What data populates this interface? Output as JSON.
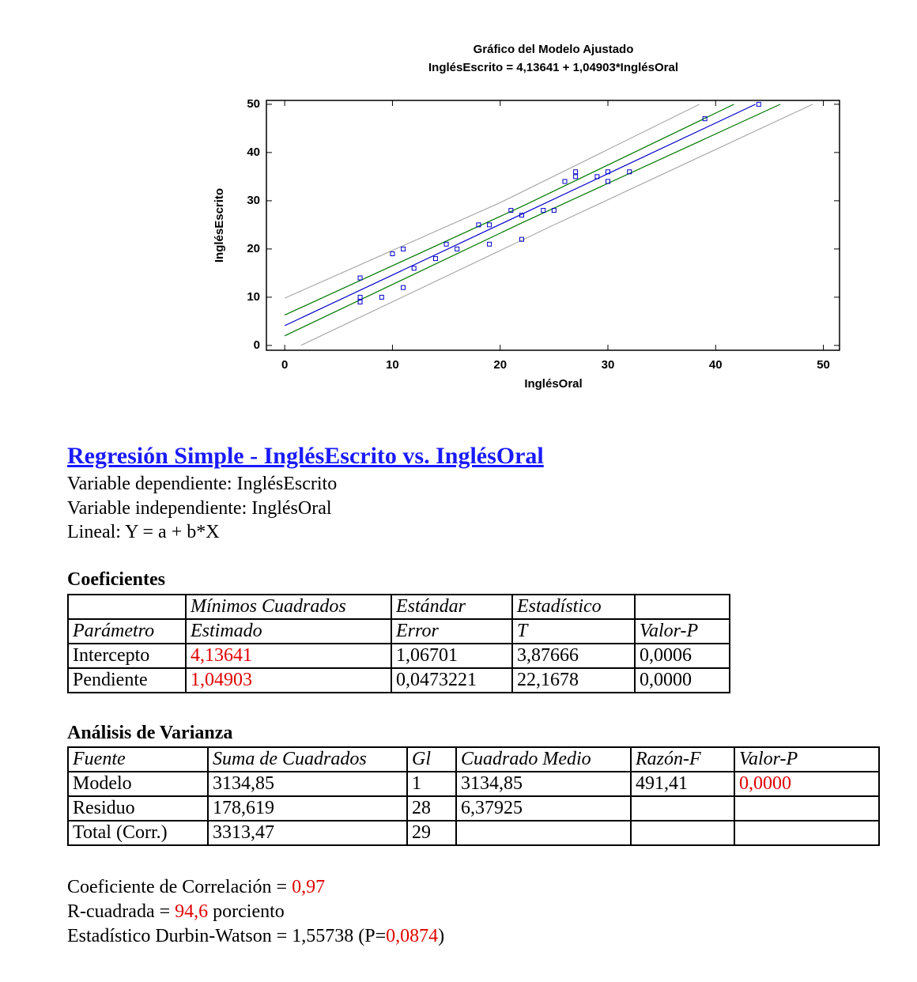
{
  "chart_data": {
    "type": "scatter",
    "title": "Gráfico del Modelo Ajustado",
    "subtitle": "InglésEscrito = 4,13641 + 1,04903*InglésOral",
    "x_label": "InglésOral",
    "y_label": "InglésEscrito",
    "xlim": [
      -1.7,
      51.5
    ],
    "ylim": [
      -1,
      50.8
    ],
    "xticks": [
      0,
      10,
      20,
      30,
      40,
      50
    ],
    "yticks": [
      0,
      10,
      20,
      30,
      40,
      50
    ],
    "series": [
      {
        "type": "scatter",
        "color": "#0000cc",
        "x": [
          7,
          7,
          7,
          9,
          10,
          11,
          11,
          12,
          14,
          15,
          16,
          18,
          19,
          19,
          21,
          22,
          22,
          24,
          25,
          26,
          27,
          27,
          29,
          30,
          30,
          32,
          39,
          44
        ],
        "values": [
          14,
          10,
          9,
          10,
          19,
          20,
          12,
          16,
          18,
          21,
          20,
          25,
          25,
          21,
          28,
          27,
          22,
          28,
          28,
          34,
          36,
          35,
          35,
          36,
          34,
          36,
          47,
          50
        ]
      },
      {
        "type": "line",
        "color": "#0000cc",
        "x": [
          0,
          43.7
        ],
        "values": [
          4.1,
          50
        ]
      },
      {
        "type": "line",
        "color": "#007700",
        "x": [
          0,
          22,
          41.7
        ],
        "values": [
          6.3,
          28.8,
          50
        ]
      },
      {
        "type": "line",
        "color": "#007700",
        "x": [
          0,
          22,
          46
        ],
        "values": [
          2,
          25.4,
          50
        ]
      },
      {
        "type": "line",
        "color": "#aaaaaa",
        "x": [
          0,
          20,
          38.5
        ],
        "values": [
          9.8,
          29.6,
          50
        ]
      },
      {
        "type": "line",
        "color": "#aaaaaa",
        "x": [
          1.5,
          25,
          49
        ],
        "values": [
          0,
          25,
          50
        ]
      }
    ]
  },
  "report": {
    "title": "Regresión Simple - InglésEscrito vs. InglésOral",
    "lines": [
      "Variable dependiente: InglésEscrito",
      "Variable independiente: InglésOral",
      "Lineal: Y = a + b*X"
    ],
    "coef": {
      "title": "Coeficientes",
      "header": [
        [
          null,
          "Mínimos Cuadrados",
          "Estándar",
          "Estadístico",
          null
        ],
        [
          "Parámetro",
          "Estimado",
          "Error",
          "T",
          "Valor-P"
        ]
      ],
      "rows": [
        [
          "Intercepto",
          "4,13641",
          "1,06701",
          "3,87666",
          "0,0006"
        ],
        [
          "Pendiente",
          "1,04903",
          "0,0473221",
          "22,1678",
          "0,0000"
        ]
      ]
    },
    "anova": {
      "title": "Análisis de Varianza",
      "header": [
        [
          "Fuente",
          "Suma de Cuadrados",
          "Gl",
          "Cuadrado Medio",
          "Razón-F",
          "Valor-P"
        ]
      ],
      "rows": [
        [
          "Modelo",
          "3134,85",
          "1",
          "3134,85",
          "491,41",
          "0,0000"
        ],
        [
          "Residuo",
          "178,619",
          "28",
          "6,37925",
          null,
          null
        ],
        [
          "Total (Corr.)",
          "3313,47",
          "29",
          null,
          null,
          null
        ]
      ]
    },
    "summary": [
      [
        "Coeficiente de Correlación = ",
        "0,97"
      ],
      [
        "R-cuadrada = ",
        "94,6",
        " porciento"
      ],
      [
        "Estadístico Durbin-Watson = 1,55738 (P=",
        "0,0874",
        ")"
      ]
    ]
  }
}
